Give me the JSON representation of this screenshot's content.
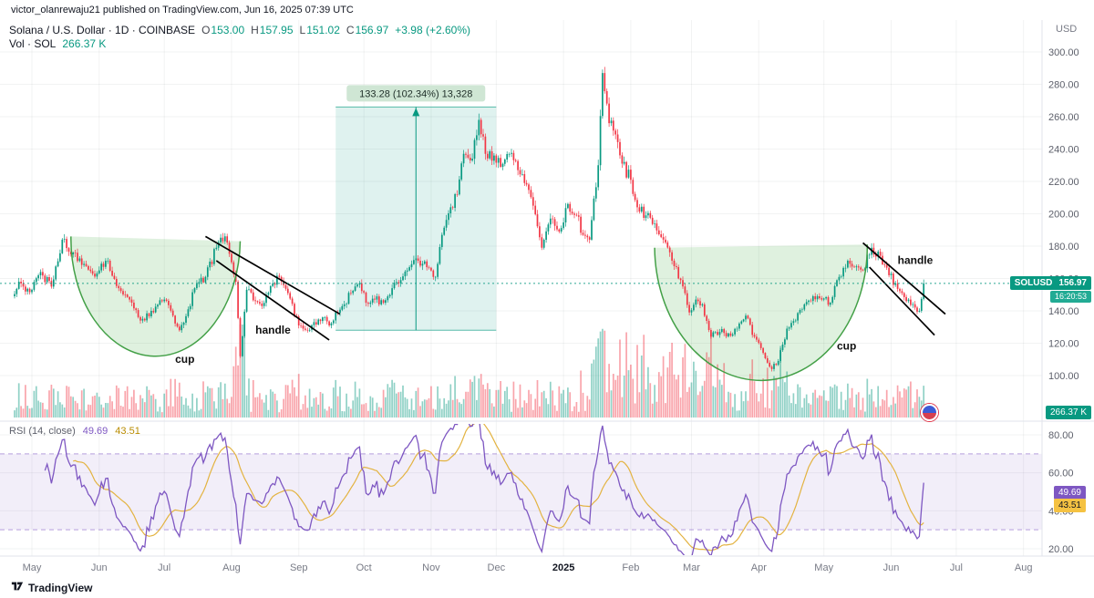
{
  "page": {
    "publisher_line": "victor_olanrewaju21 published on TradingView.com, Jun 16, 2025 07:39 UTC",
    "brand": "TradingView"
  },
  "header": {
    "symbol_title": "Solana / U.S. Dollar · 1D · COINBASE",
    "ohlc": {
      "o_label": "O",
      "o": "153.00",
      "h_label": "H",
      "h": "157.95",
      "l_label": "L",
      "l": "151.02",
      "c_label": "C",
      "c": "156.97",
      "change": "+3.98 (+2.60%)"
    },
    "vol_label": "Vol · SOL",
    "vol_value": "266.37 K",
    "axis_currency": "USD"
  },
  "rsi_legend": {
    "title": "RSI (14, close)",
    "main": "49.69",
    "ma": "43.51"
  },
  "badges": {
    "symbol": "SOLUSD",
    "price": "156.97",
    "countdown": "16:20:53",
    "volume": "266.37 K",
    "rsi_main": "49.69",
    "rsi_ma": "43.51"
  },
  "colors": {
    "up": "#089981",
    "down": "#f23645",
    "vol_up": "rgba(8,153,129,0.45)",
    "vol_down": "rgba(242,54,69,0.45)",
    "rsi": "#7e57c2",
    "rsi_ma": "#e3b341",
    "band_fill": "rgba(126,87,194,0.10)",
    "cup_fill": "rgba(76,175,80,0.18)",
    "cup_stroke": "#43a047",
    "measure_fill": "rgba(8,153,129,0.13)",
    "measure_stroke": "rgba(8,153,129,0.65)",
    "grid": "rgba(42,46,57,0.06)",
    "axis_text": "#5d606b",
    "dark_text": "#131722"
  },
  "chart_data": {
    "type": "candlestick",
    "title": "Solana / U.S. Dollar, 1D, COINBASE",
    "ylim": [
      88,
      312
    ],
    "yticks": [
      100,
      120,
      140,
      160,
      180,
      200,
      220,
      240,
      260,
      280,
      300
    ],
    "rsi_ticks": [
      20,
      40,
      60,
      80
    ],
    "rsi_band": [
      30,
      70
    ],
    "last_close": 156.97,
    "price_line": 156.97,
    "x_months": [
      [
        "May",
        0
      ],
      [
        "Jun",
        31
      ],
      [
        "Jul",
        61
      ],
      [
        "Aug",
        92
      ],
      [
        "Sep",
        123
      ],
      [
        "Oct",
        153
      ],
      [
        "Nov",
        184
      ],
      [
        "Dec",
        214
      ],
      [
        "2025",
        245
      ],
      [
        "Feb",
        276
      ],
      [
        "Mar",
        304
      ],
      [
        "Apr",
        335
      ],
      [
        "May",
        365
      ],
      [
        "Jun",
        396
      ],
      [
        "Jul",
        426
      ],
      [
        "Aug",
        457
      ]
    ],
    "bold_month": "2025",
    "anchors": [
      [
        -9,
        149
      ],
      [
        -6,
        158
      ],
      [
        -3,
        152
      ],
      [
        0,
        153
      ],
      [
        4,
        164
      ],
      [
        9,
        155
      ],
      [
        14,
        184
      ],
      [
        19,
        176
      ],
      [
        24,
        169
      ],
      [
        28,
        163
      ],
      [
        31,
        165
      ],
      [
        35,
        171
      ],
      [
        40,
        154
      ],
      [
        45,
        147
      ],
      [
        50,
        134
      ],
      [
        55,
        140
      ],
      [
        61,
        147
      ],
      [
        65,
        137
      ],
      [
        68,
        128
      ],
      [
        72,
        141
      ],
      [
        75,
        154
      ],
      [
        80,
        161
      ],
      [
        85,
        179
      ],
      [
        89,
        186
      ],
      [
        92,
        170
      ],
      [
        94,
        158
      ],
      [
        96,
        112
      ],
      [
        99,
        153
      ],
      [
        103,
        146
      ],
      [
        106,
        143
      ],
      [
        111,
        157
      ],
      [
        114,
        161
      ],
      [
        118,
        151
      ],
      [
        123,
        131
      ],
      [
        127,
        128
      ],
      [
        130,
        133
      ],
      [
        134,
        136
      ],
      [
        137,
        131
      ],
      [
        140,
        139
      ],
      [
        144,
        144
      ],
      [
        147,
        151
      ],
      [
        151,
        157
      ],
      [
        154,
        145
      ],
      [
        158,
        147
      ],
      [
        162,
        145
      ],
      [
        166,
        154
      ],
      [
        170,
        159
      ],
      [
        174,
        167
      ],
      [
        178,
        171
      ],
      [
        182,
        167
      ],
      [
        186,
        161
      ],
      [
        189,
        187
      ],
      [
        193,
        204
      ],
      [
        196,
        212
      ],
      [
        199,
        237
      ],
      [
        203,
        234
      ],
      [
        206,
        258
      ],
      [
        209,
        237
      ],
      [
        213,
        236
      ],
      [
        216,
        229
      ],
      [
        220,
        237
      ],
      [
        224,
        227
      ],
      [
        227,
        219
      ],
      [
        231,
        205
      ],
      [
        235,
        179
      ],
      [
        239,
        197
      ],
      [
        243,
        189
      ],
      [
        247,
        206
      ],
      [
        251,
        199
      ],
      [
        254,
        187
      ],
      [
        257,
        184
      ],
      [
        261,
        230
      ],
      [
        263,
        287
      ],
      [
        266,
        256
      ],
      [
        269,
        249
      ],
      [
        272,
        231
      ],
      [
        276,
        221
      ],
      [
        279,
        204
      ],
      [
        283,
        199
      ],
      [
        287,
        194
      ],
      [
        291,
        184
      ],
      [
        295,
        171
      ],
      [
        299,
        159
      ],
      [
        303,
        139
      ],
      [
        306,
        147
      ],
      [
        309,
        144
      ],
      [
        313,
        124
      ],
      [
        317,
        127
      ],
      [
        321,
        126
      ],
      [
        325,
        129
      ],
      [
        329,
        137
      ],
      [
        333,
        124
      ],
      [
        337,
        114
      ],
      [
        341,
        104
      ],
      [
        344,
        109
      ],
      [
        348,
        129
      ],
      [
        352,
        134
      ],
      [
        356,
        144
      ],
      [
        360,
        149
      ],
      [
        364,
        147
      ],
      [
        368,
        145
      ],
      [
        372,
        161
      ],
      [
        376,
        171
      ],
      [
        379,
        167
      ],
      [
        383,
        165
      ],
      [
        387,
        179
      ],
      [
        391,
        174
      ],
      [
        395,
        162
      ],
      [
        398,
        157
      ],
      [
        401,
        151
      ],
      [
        404,
        147
      ],
      [
        407,
        142
      ],
      [
        409,
        140
      ],
      [
        411,
        156.97
      ]
    ],
    "volume_spikes": [
      [
        93,
        100,
        1.9
      ],
      [
        96,
        97,
        3.2
      ],
      [
        199,
        215,
        1.25
      ],
      [
        258,
        320,
        1.95
      ],
      [
        330,
        345,
        1.3
      ]
    ],
    "annotations": {
      "measure": {
        "d1": 140,
        "d2": 214,
        "p_top": 266,
        "p_bottom": 128,
        "label": "133.28 (102.34%) 13,328"
      },
      "cups": [
        {
          "d1": 18,
          "p1": 186,
          "d2": 96,
          "p2": 183,
          "p_bottom": 112,
          "label": "cup",
          "label_d": 66,
          "label_p": 108
        },
        {
          "d1": 287,
          "p1": 179,
          "d2": 385,
          "p2": 181,
          "p_bottom": 97,
          "label": "cup",
          "label_d": 371,
          "label_p": 116
        }
      ],
      "handle_lines": [
        [
          80,
          186,
          142,
          138
        ],
        [
          85,
          171,
          137,
          122
        ],
        [
          383,
          182,
          421,
          138
        ],
        [
          386,
          167,
          416,
          125
        ]
      ],
      "handle_labels": [
        {
          "d": 103,
          "p": 126,
          "text": "handle"
        },
        {
          "d": 399,
          "p": 169,
          "text": "handle"
        }
      ]
    }
  }
}
